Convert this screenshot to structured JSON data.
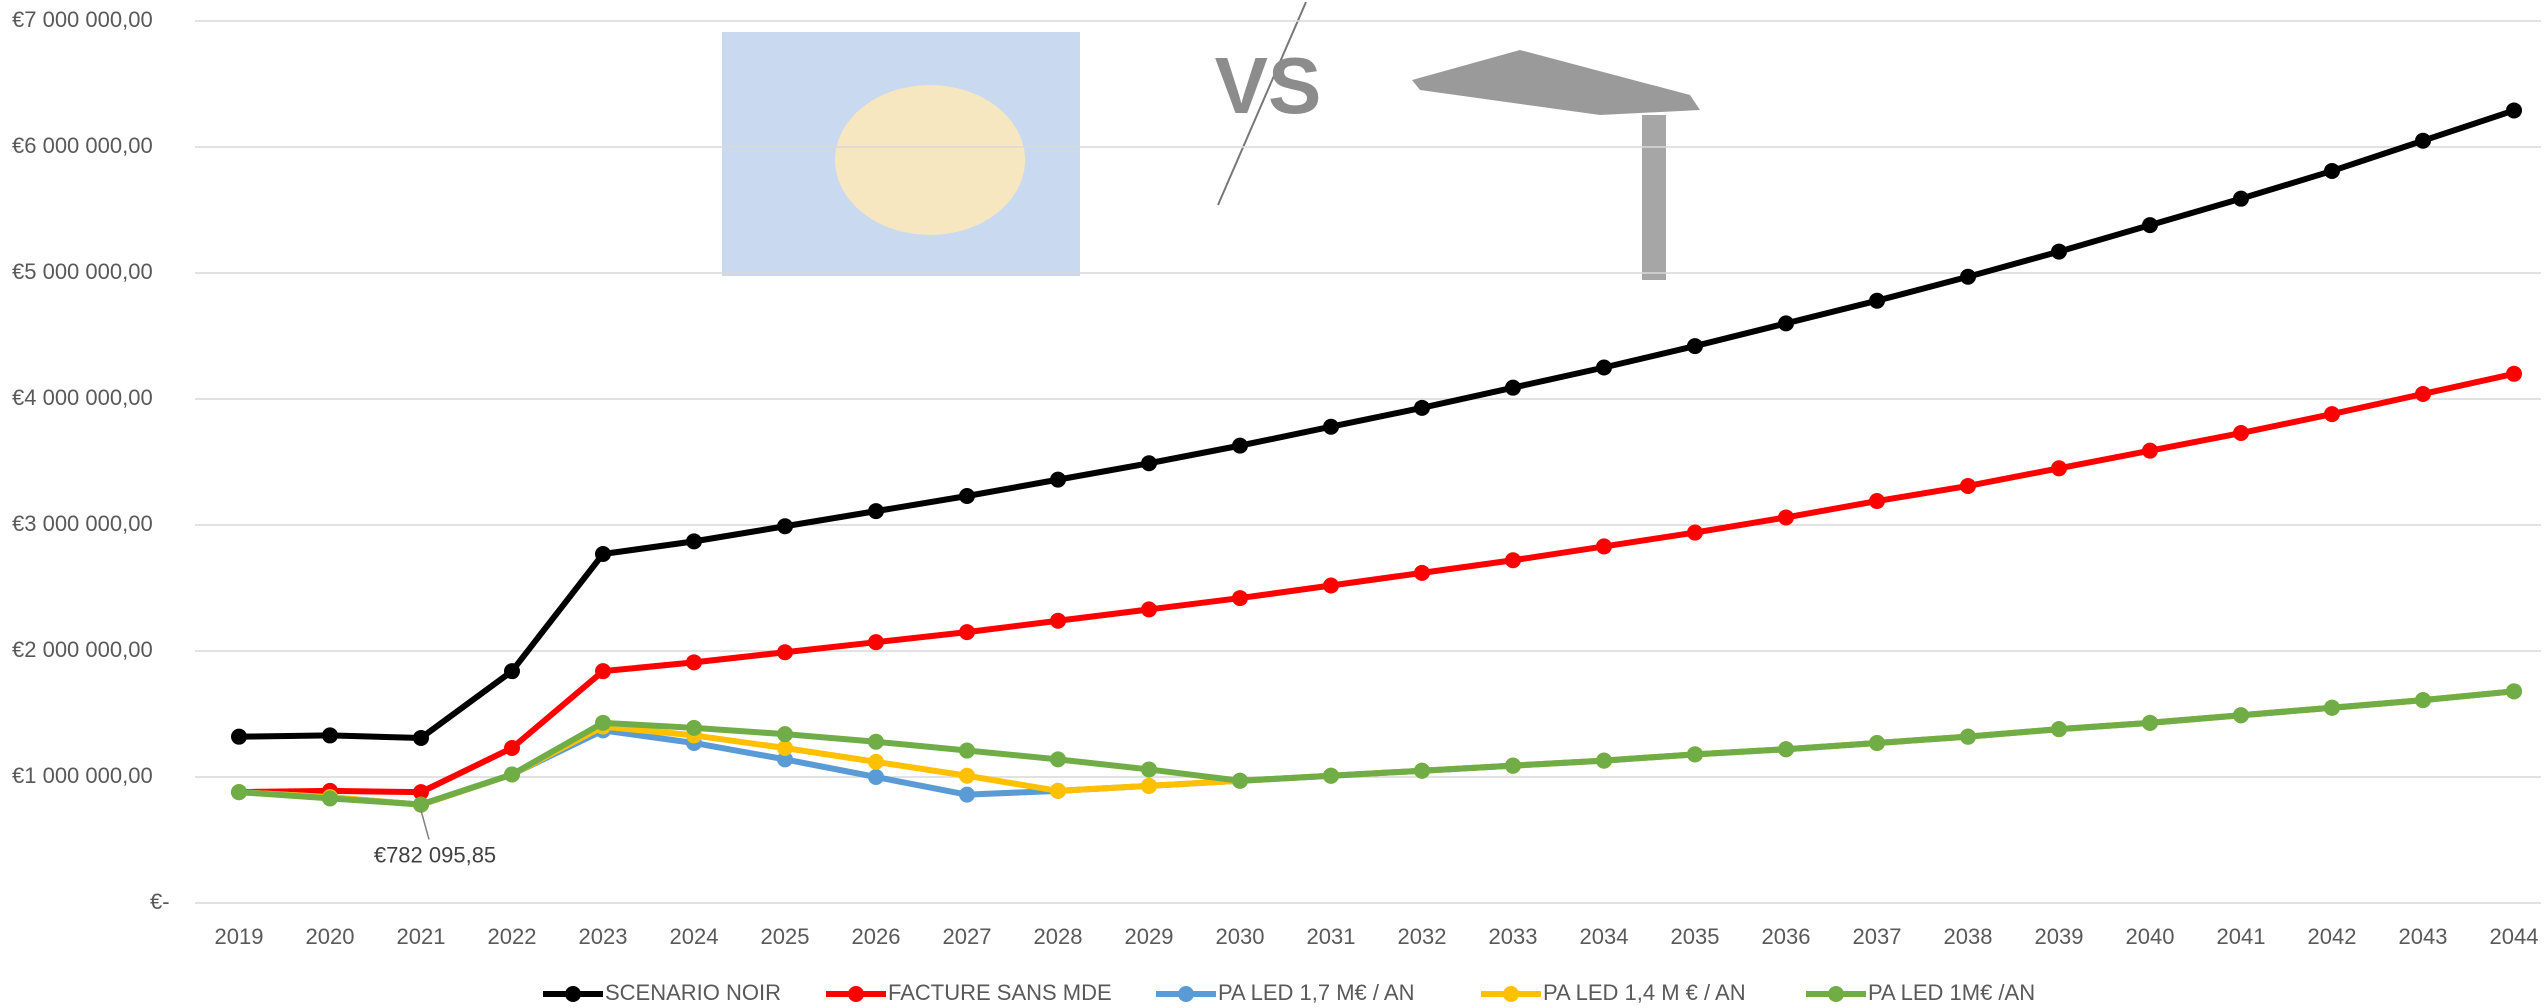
{
  "chart_data": {
    "type": "line",
    "categories": [
      "2019",
      "2020",
      "2021",
      "2022",
      "2023",
      "2024",
      "2025",
      "2026",
      "2027",
      "2028",
      "2029",
      "2030",
      "2031",
      "2032",
      "2033",
      "2034",
      "2035",
      "2036",
      "2037",
      "2038",
      "2039",
      "2040",
      "2041",
      "2042",
      "2043",
      "2044"
    ],
    "series": [
      {
        "name": "SCENARIO NOIR",
        "color": "#000000",
        "values": [
          1320000,
          1330000,
          1310000,
          1840000,
          2770000,
          2870000,
          2990000,
          3110000,
          3230000,
          3360000,
          3490000,
          3630000,
          3780000,
          3930000,
          4090000,
          4250000,
          4420000,
          4600000,
          4780000,
          4970000,
          5170000,
          5380000,
          5590000,
          5810000,
          6050000,
          6290000
        ]
      },
      {
        "name": "FACTURE SANS MDE",
        "color": "#ff0000",
        "values": [
          880000,
          890000,
          880000,
          1230000,
          1840000,
          1910000,
          1990000,
          2070000,
          2150000,
          2240000,
          2330000,
          2420000,
          2520000,
          2620000,
          2720000,
          2830000,
          2940000,
          3060000,
          3190000,
          3310000,
          3450000,
          3590000,
          3730000,
          3880000,
          4040000,
          4200000
        ]
      },
      {
        "name": "PA LED 1,7 M€ / AN",
        "color": "#5b9bd5",
        "values": [
          880000,
          840000,
          780000,
          1020000,
          1370000,
          1270000,
          1140000,
          1000000,
          860000,
          890000,
          930000,
          970000,
          1010000,
          1050000,
          1090000,
          1130000,
          1180000,
          1220000,
          1270000,
          1320000,
          1380000,
          1430000,
          1490000,
          1550000,
          1610000,
          1680000
        ]
      },
      {
        "name": "PA LED 1,4 M € / AN",
        "color": "#ffc000",
        "values": [
          880000,
          840000,
          780000,
          1020000,
          1400000,
          1330000,
          1230000,
          1120000,
          1010000,
          890000,
          930000,
          970000,
          1010000,
          1050000,
          1090000,
          1130000,
          1180000,
          1220000,
          1270000,
          1320000,
          1380000,
          1430000,
          1490000,
          1550000,
          1610000,
          1680000
        ]
      },
      {
        "name": "PA LED 1M€ /AN",
        "color": "#70ad47",
        "values": [
          880000,
          830000,
          782095.85,
          1020000,
          1430000,
          1390000,
          1340000,
          1280000,
          1210000,
          1140000,
          1060000,
          970000,
          1010000,
          1050000,
          1090000,
          1130000,
          1180000,
          1220000,
          1270000,
          1320000,
          1380000,
          1430000,
          1490000,
          1550000,
          1610000,
          1680000
        ]
      }
    ],
    "ylim": [
      0,
      7000000
    ],
    "yticks": [
      {
        "value": 0,
        "label": "€-"
      },
      {
        "value": 1000000,
        "label": "€1 000 000,00"
      },
      {
        "value": 2000000,
        "label": "€2 000 000,00"
      },
      {
        "value": 3000000,
        "label": "€3 000 000,00"
      },
      {
        "value": 4000000,
        "label": "€4 000 000,00"
      },
      {
        "value": 5000000,
        "label": "€5 000 000,00"
      },
      {
        "value": 6000000,
        "label": "€6 000 000,00"
      },
      {
        "value": 7000000,
        "label": "€7 000 000,00"
      }
    ],
    "grid": true,
    "legend": "bottom",
    "annotation": "€782 095,85",
    "image_label": "VS"
  }
}
